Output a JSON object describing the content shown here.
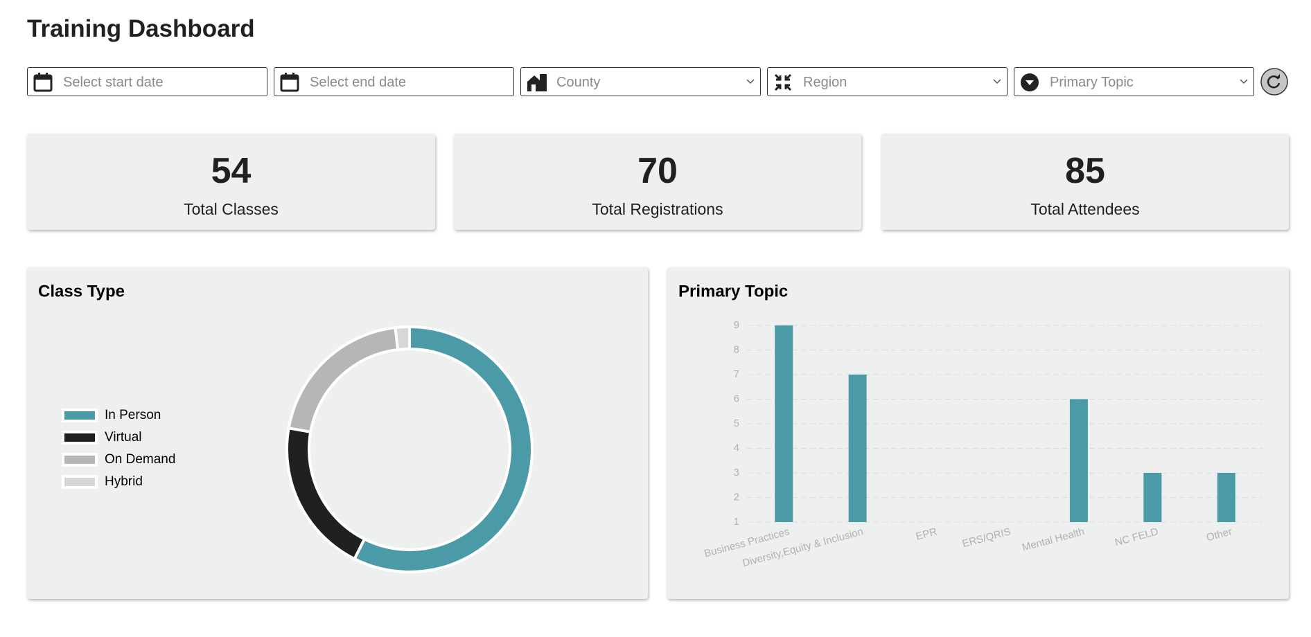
{
  "title": "Training Dashboard",
  "filters": [
    "Select start date",
    "Select end date",
    "County",
    "Region",
    "Primary Topic"
  ],
  "kpis": [
    {
      "value": "54",
      "label": "Total Classes"
    },
    {
      "value": "70",
      "label": "Total Registrations"
    },
    {
      "value": "85",
      "label": "Total Attendees"
    }
  ],
  "chart_data": [
    {
      "type": "pie",
      "title": "Class Type",
      "categories": [
        "In Person",
        "Virtual",
        "On Demand",
        "Hybrid"
      ],
      "values": [
        31,
        11,
        11,
        1
      ],
      "colors": [
        "#4b9aa8",
        "#1f2021",
        "#b5b6b5",
        "#d6d7d6"
      ],
      "legend": "left"
    },
    {
      "type": "bar",
      "title": "Primary Topic",
      "categories": [
        "Business Practices",
        "Diversity,Equity & Inclusion",
        "EPR",
        "ERS/QRIS",
        "Mental Health",
        "NC FELD",
        "Other"
      ],
      "values": [
        9,
        7,
        null,
        null,
        6,
        3,
        3
      ],
      "color": "#4b9aa8",
      "ylim": [
        1,
        9
      ],
      "yticks": [
        1,
        2,
        3,
        4,
        5,
        6,
        7,
        8,
        9
      ],
      "grid": true
    }
  ]
}
